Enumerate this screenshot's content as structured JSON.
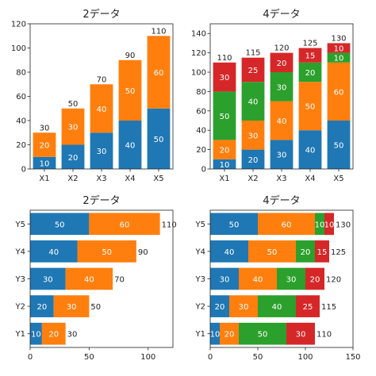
{
  "chart_data": [
    {
      "type": "bar",
      "orientation": "vertical",
      "stacked": true,
      "title": "2データ",
      "categories": [
        "X1",
        "X2",
        "X3",
        "X4",
        "X5"
      ],
      "series": [
        {
          "values": [
            10,
            20,
            30,
            40,
            50
          ],
          "color": "#1f77b4"
        },
        {
          "values": [
            20,
            30,
            40,
            50,
            60
          ],
          "color": "#ff7f0e"
        }
      ],
      "totals": [
        30,
        50,
        70,
        90,
        110
      ],
      "ylim": [
        0,
        120
      ],
      "ticks": [
        0,
        20,
        40,
        60,
        80,
        100,
        120
      ],
      "grid": false
    },
    {
      "type": "bar",
      "orientation": "vertical",
      "stacked": true,
      "title": "4データ",
      "categories": [
        "X1",
        "X2",
        "X3",
        "X4",
        "X5"
      ],
      "series": [
        {
          "values": [
            10,
            20,
            30,
            40,
            50
          ],
          "color": "#1f77b4"
        },
        {
          "values": [
            20,
            30,
            40,
            50,
            60
          ],
          "color": "#ff7f0e"
        },
        {
          "values": [
            50,
            40,
            30,
            20,
            10
          ],
          "color": "#2ca02c"
        },
        {
          "values": [
            30,
            25,
            20,
            15,
            10
          ],
          "color": "#d62728"
        }
      ],
      "totals": [
        110,
        115,
        120,
        125,
        130
      ],
      "ylim": [
        0,
        150
      ],
      "ticks": [
        0,
        20,
        40,
        60,
        80,
        100,
        120,
        140
      ],
      "grid": false
    },
    {
      "type": "bar",
      "orientation": "horizontal",
      "stacked": true,
      "title": "2データ",
      "categories": [
        "Y1",
        "Y2",
        "Y3",
        "Y4",
        "Y5"
      ],
      "series": [
        {
          "values": [
            10,
            20,
            30,
            40,
            50
          ],
          "color": "#1f77b4"
        },
        {
          "values": [
            20,
            30,
            40,
            50,
            60
          ],
          "color": "#ff7f0e"
        }
      ],
      "totals": [
        30,
        50,
        70,
        90,
        110
      ],
      "xlim": [
        0,
        121
      ],
      "ticks": [
        0,
        50,
        100
      ],
      "grid": false
    },
    {
      "type": "bar",
      "orientation": "horizontal",
      "stacked": true,
      "title": "4データ",
      "categories": [
        "Y1",
        "Y2",
        "Y3",
        "Y4",
        "Y5"
      ],
      "series": [
        {
          "values": [
            10,
            20,
            30,
            40,
            50
          ],
          "color": "#1f77b4"
        },
        {
          "values": [
            20,
            30,
            40,
            50,
            60
          ],
          "color": "#ff7f0e"
        },
        {
          "values": [
            50,
            40,
            30,
            20,
            10
          ],
          "color": "#2ca02c"
        },
        {
          "values": [
            30,
            25,
            20,
            15,
            10
          ],
          "color": "#d62728"
        }
      ],
      "totals": [
        110,
        115,
        120,
        125,
        130
      ],
      "xlim": [
        0,
        150
      ],
      "ticks": [
        0,
        50,
        100,
        150
      ],
      "grid": false
    }
  ]
}
